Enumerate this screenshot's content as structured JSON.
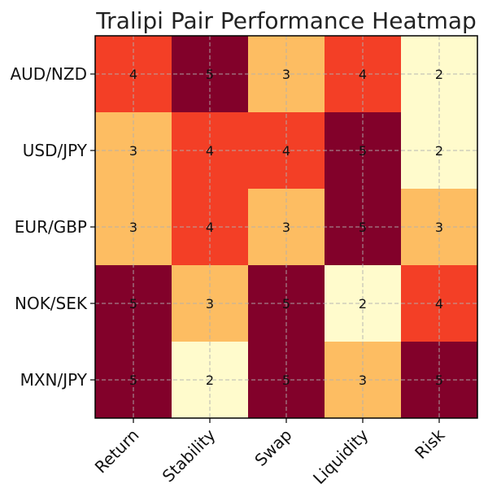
{
  "chart_data": {
    "type": "heatmap",
    "title": "Tralipi Pair Performance Heatmap",
    "xlabel": "",
    "ylabel": "",
    "columns": [
      "Return",
      "Stability",
      "Swap",
      "Liquidity",
      "Risk"
    ],
    "rows": [
      "AUD/NZD",
      "USD/JPY",
      "EUR/GBP",
      "NOK/SEK",
      "MXN/JPY"
    ],
    "values": [
      [
        4,
        5,
        3,
        4,
        2
      ],
      [
        3,
        4,
        4,
        5,
        2
      ],
      [
        3,
        4,
        3,
        5,
        3
      ],
      [
        5,
        3,
        5,
        2,
        4
      ],
      [
        5,
        2,
        5,
        3,
        5
      ]
    ],
    "value_range": [
      2,
      5
    ],
    "colormap": {
      "2": "#fffbcc",
      "3": "#fdbd62",
      "4": "#f33f26",
      "5": "#82012a"
    },
    "grid": true,
    "x_tick_rotation": "45deg"
  }
}
